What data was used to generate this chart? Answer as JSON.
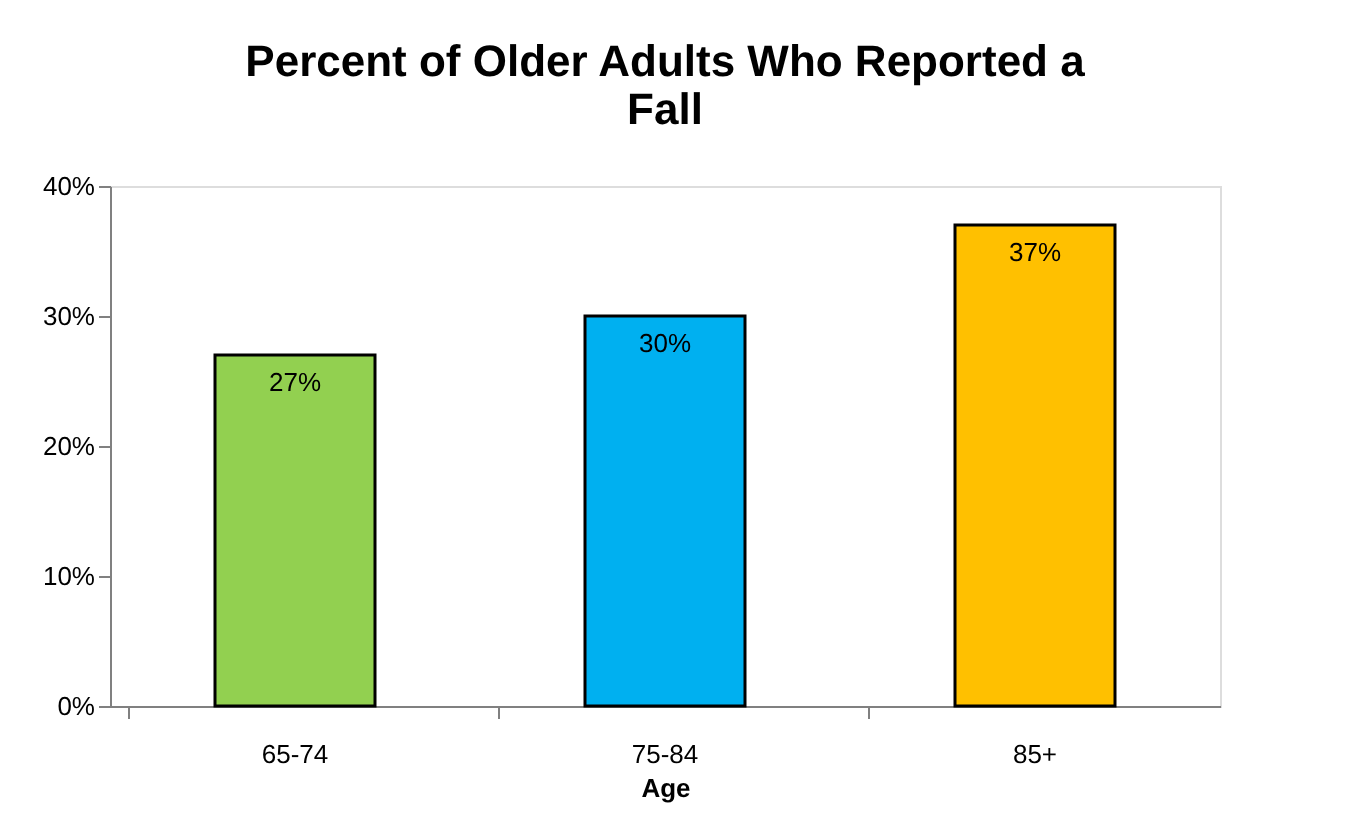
{
  "chart_data": {
    "type": "bar",
    "title": "Percent of Older Adults Who Reported a Fall",
    "xlabel": "Age",
    "categories": [
      "65-74",
      "75-84",
      "85+"
    ],
    "values": [
      27,
      30,
      37
    ],
    "colors": [
      "#92d050",
      "#00b0f0",
      "#ffc000"
    ],
    "value_labels": [
      "27%",
      "30%",
      "37%"
    ],
    "ylim": [
      0,
      40
    ],
    "yticks": [
      {
        "value": 0,
        "label": "0%"
      },
      {
        "value": 10,
        "label": "10%"
      },
      {
        "value": 20,
        "label": "20%"
      },
      {
        "value": 30,
        "label": "30%"
      },
      {
        "value": 40,
        "label": "40%"
      }
    ],
    "grid": false
  }
}
